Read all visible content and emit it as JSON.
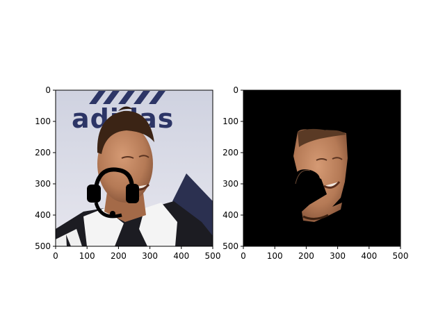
{
  "figure": {
    "background": "#ffffff",
    "panels": [
      {
        "id": "left",
        "title": "",
        "xlim": [
          0,
          500
        ],
        "ylim": [
          500,
          0
        ],
        "xticks": [
          "0",
          "100",
          "200",
          "300",
          "400",
          "500"
        ],
        "yticks": [
          "0",
          "100",
          "200",
          "300",
          "400",
          "500"
        ],
        "content": "photo-with-headset-overlay"
      },
      {
        "id": "right",
        "title": "",
        "xlim": [
          0,
          500
        ],
        "ylim": [
          500,
          0
        ],
        "xticks": [
          "0",
          "100",
          "200",
          "300",
          "400",
          "500"
        ],
        "yticks": [
          "0",
          "100",
          "200",
          "300",
          "400",
          "500"
        ],
        "content": "masked-face-on-black"
      }
    ]
  },
  "logo_text": "adidas",
  "colors": {
    "headset": "#000000",
    "mask_background": "#000000",
    "skin": "#b57a56",
    "hair": "#3b2415",
    "backdrop": "#d6d8e4",
    "jacket_dark": "#1a1a1e",
    "jacket_light": "#f2f2f2"
  }
}
